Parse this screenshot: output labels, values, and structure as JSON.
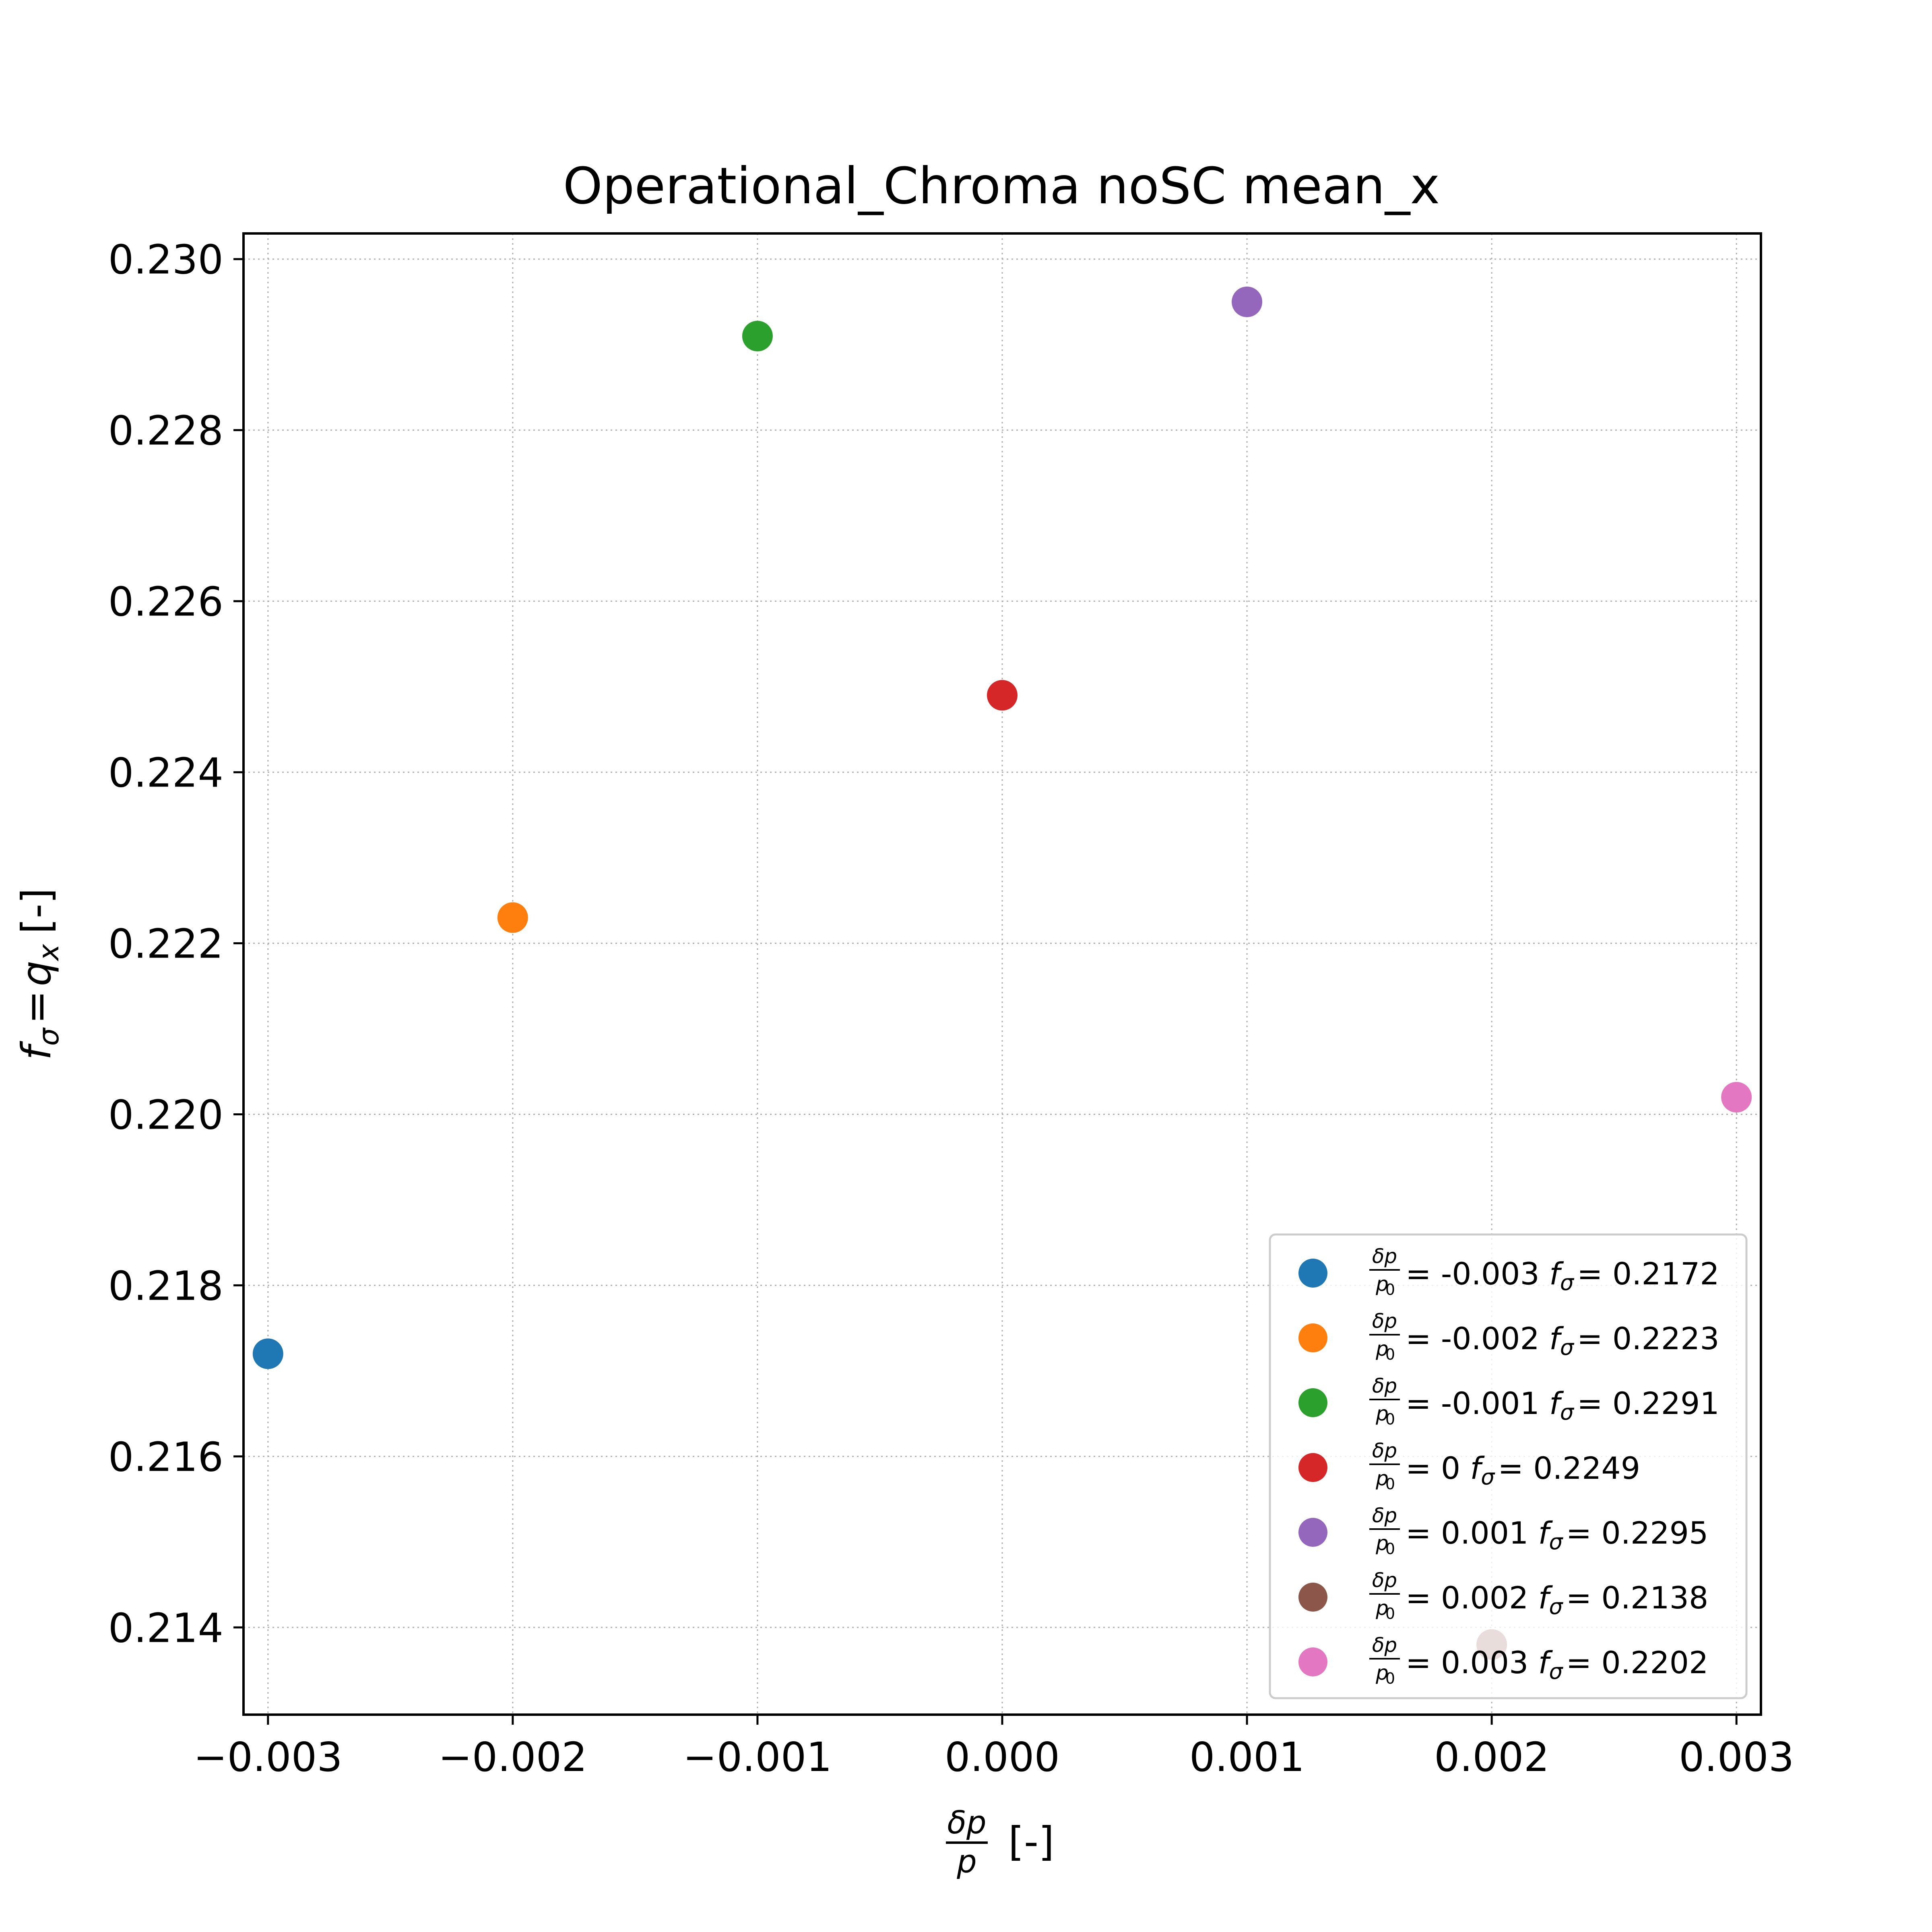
{
  "chart_data": {
    "type": "scatter",
    "title": "Operational_Chroma noSC mean_x",
    "xlabel": {
      "num": "δp",
      "den": "p",
      "unit": "[-]"
    },
    "ylabel": {
      "prefix": "f",
      "sub": "σ",
      "eq": "=",
      "q": "q",
      "qsub": "x",
      "unit": "[-]"
    },
    "xlim": [
      -0.0031,
      0.0031
    ],
    "ylim": [
      0.21298,
      0.2303
    ],
    "xticks": [
      "−0.003",
      "−0.002",
      "−0.001",
      "0.000",
      "0.001",
      "0.002",
      "0.003"
    ],
    "xtick_values": [
      -0.003,
      -0.002,
      -0.001,
      0.0,
      0.001,
      0.002,
      0.003
    ],
    "yticks": [
      "0.214",
      "0.216",
      "0.218",
      "0.220",
      "0.222",
      "0.224",
      "0.226",
      "0.228",
      "0.230"
    ],
    "ytick_values": [
      0.214,
      0.216,
      0.218,
      0.22,
      0.222,
      0.224,
      0.226,
      0.228,
      0.23
    ],
    "grid": true,
    "legend_placement": "lower-right",
    "series": [
      {
        "name": "-0.003",
        "x": -0.003,
        "y": 0.2172,
        "color": "#1f77b4",
        "label": "= -0.003",
        "value": "= 0.2172"
      },
      {
        "name": "-0.002",
        "x": -0.002,
        "y": 0.2223,
        "color": "#ff7f0e",
        "label": "= -0.002",
        "value": "= 0.2223"
      },
      {
        "name": "-0.001",
        "x": -0.001,
        "y": 0.2291,
        "color": "#2ca02c",
        "label": "= -0.001",
        "value": "= 0.2291"
      },
      {
        "name": "0",
        "x": 0.0,
        "y": 0.2249,
        "color": "#d62728",
        "label": "= 0",
        "value": "= 0.2249"
      },
      {
        "name": "0.001",
        "x": 0.001,
        "y": 0.2295,
        "color": "#9467bd",
        "label": "= 0.001",
        "value": "= 0.2295"
      },
      {
        "name": "0.002",
        "x": 0.002,
        "y": 0.2138,
        "color": "#8c564b",
        "label": "= 0.002",
        "value": "= 0.2138"
      },
      {
        "name": "0.003",
        "x": 0.003,
        "y": 0.2202,
        "color": "#e377c2",
        "label": "= 0.003",
        "value": "= 0.2202"
      }
    ],
    "legend_fraction": {
      "num": "δp",
      "den": "p",
      "den_sub": "0"
    },
    "legend_f": {
      "f": "f",
      "sub": "σ"
    }
  }
}
